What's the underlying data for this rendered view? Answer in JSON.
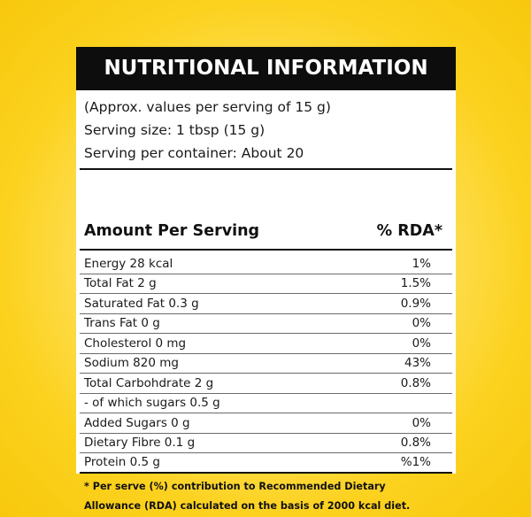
{
  "label": {
    "title": "NUTRITIONAL INFORMATION",
    "serving": {
      "approx": "(Approx. values per serving of 15 g)",
      "size": "Serving size: 1 tbsp (15 g)",
      "per_container": "Serving per container: About 20"
    },
    "amount_header": "Amount Per Serving",
    "rda_header": "% RDA*",
    "nutrients": [
      {
        "name": "Energy 28 kcal",
        "rda": "1%"
      },
      {
        "name": "Total Fat 2 g",
        "rda": "1.5%"
      },
      {
        "name": "Saturated Fat 0.3 g",
        "rda": "0.9%"
      },
      {
        "name": "Trans Fat 0 g",
        "rda": "0%"
      },
      {
        "name": "Cholesterol 0 mg",
        "rda": "0%"
      },
      {
        "name": "Sodium 820 mg",
        "rda": "43%"
      },
      {
        "name": "Total Carbohdrate 2 g",
        "rda": "0.8%"
      },
      {
        "name": "- of which sugars 0.5 g",
        "rda": ""
      },
      {
        "name": "Added Sugars 0 g",
        "rda": "0%"
      },
      {
        "name": "Dietary Fibre 0.1 g",
        "rda": "0.8%"
      },
      {
        "name": "Protein 0.5 g",
        "rda": "%1%"
      }
    ],
    "footnote": {
      "line1": "* Per serve (%) contribution to Recommended Dietary",
      "line2": "Allowance (RDA) calculated on the basis of 2000 kcal diet."
    }
  },
  "colors": {
    "background": "#fcd21f",
    "header_bg": "#0d0d0d",
    "header_text": "#ffffff",
    "card_bg": "#ffffff"
  }
}
